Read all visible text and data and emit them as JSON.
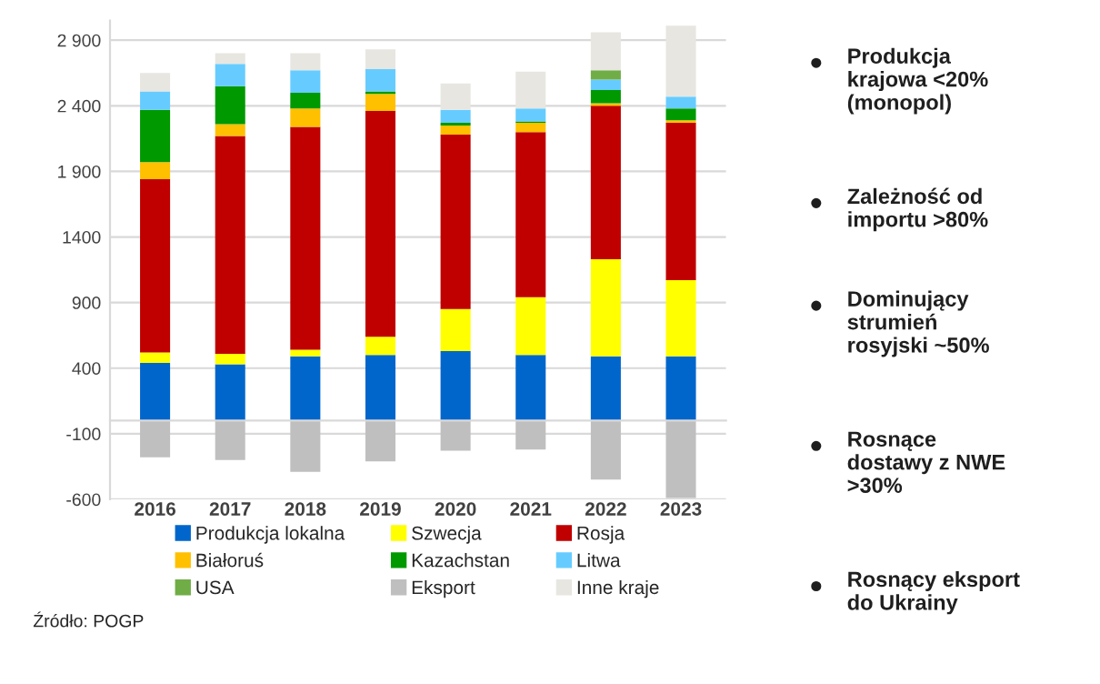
{
  "chart_data": {
    "type": "bar",
    "stacked": true,
    "categories": [
      "2016",
      "2017",
      "2018",
      "2019",
      "2020",
      "2021",
      "2022",
      "2023"
    ],
    "series": [
      {
        "name": "Produkcja lokalna",
        "color": "#0066cc",
        "values": [
          440,
          430,
          490,
          500,
          530,
          500,
          490,
          490
        ]
      },
      {
        "name": "Szwecja",
        "color": "#ffff00",
        "values": [
          80,
          80,
          50,
          140,
          320,
          440,
          740,
          580
        ]
      },
      {
        "name": "Rosja",
        "color": "#c00000",
        "values": [
          1320,
          1660,
          1700,
          1720,
          1330,
          1260,
          1170,
          1200
        ]
      },
      {
        "name": "Białoruś",
        "color": "#ffc000",
        "values": [
          130,
          90,
          140,
          130,
          70,
          70,
          20,
          20
        ]
      },
      {
        "name": "Kazachstan",
        "color": "#009900",
        "values": [
          400,
          290,
          120,
          20,
          20,
          10,
          100,
          90
        ]
      },
      {
        "name": "Litwa",
        "color": "#66ccff",
        "values": [
          140,
          170,
          170,
          170,
          100,
          100,
          80,
          90
        ]
      },
      {
        "name": "USA",
        "color": "#70ad47",
        "values": [
          null,
          null,
          null,
          null,
          null,
          null,
          70,
          null
        ]
      },
      {
        "name": "Eksport",
        "color": "#bfbfbf",
        "values": [
          -280,
          -300,
          -390,
          -310,
          -230,
          -220,
          -450,
          -590
        ]
      },
      {
        "name": "Inne kraje",
        "color": "#e7e6e1",
        "values": [
          140,
          80,
          130,
          150,
          200,
          280,
          290,
          540
        ]
      }
    ],
    "ylim": [
      -600,
      3050
    ],
    "yticks": [
      -600,
      -100,
      400,
      900,
      1400,
      {
        "value": 1900,
        "label": "1 900"
      },
      {
        "value": 2400,
        "label": "2 400"
      },
      {
        "value": 2900,
        "label": "2 900"
      }
    ],
    "grid": "y",
    "legend": "bottom",
    "annotations": [
      "Produkcja\nkrajowa <20%\n(monopol)",
      "Zależność od\nimportu >80%",
      "Dominujący\nstrumień\nrosyjski ~50%",
      "Rosnące\ndostawy z NWE\n>30%",
      "Rosnący eksport\ndo Ukrainy",
      "Źródło: POGP"
    ]
  }
}
